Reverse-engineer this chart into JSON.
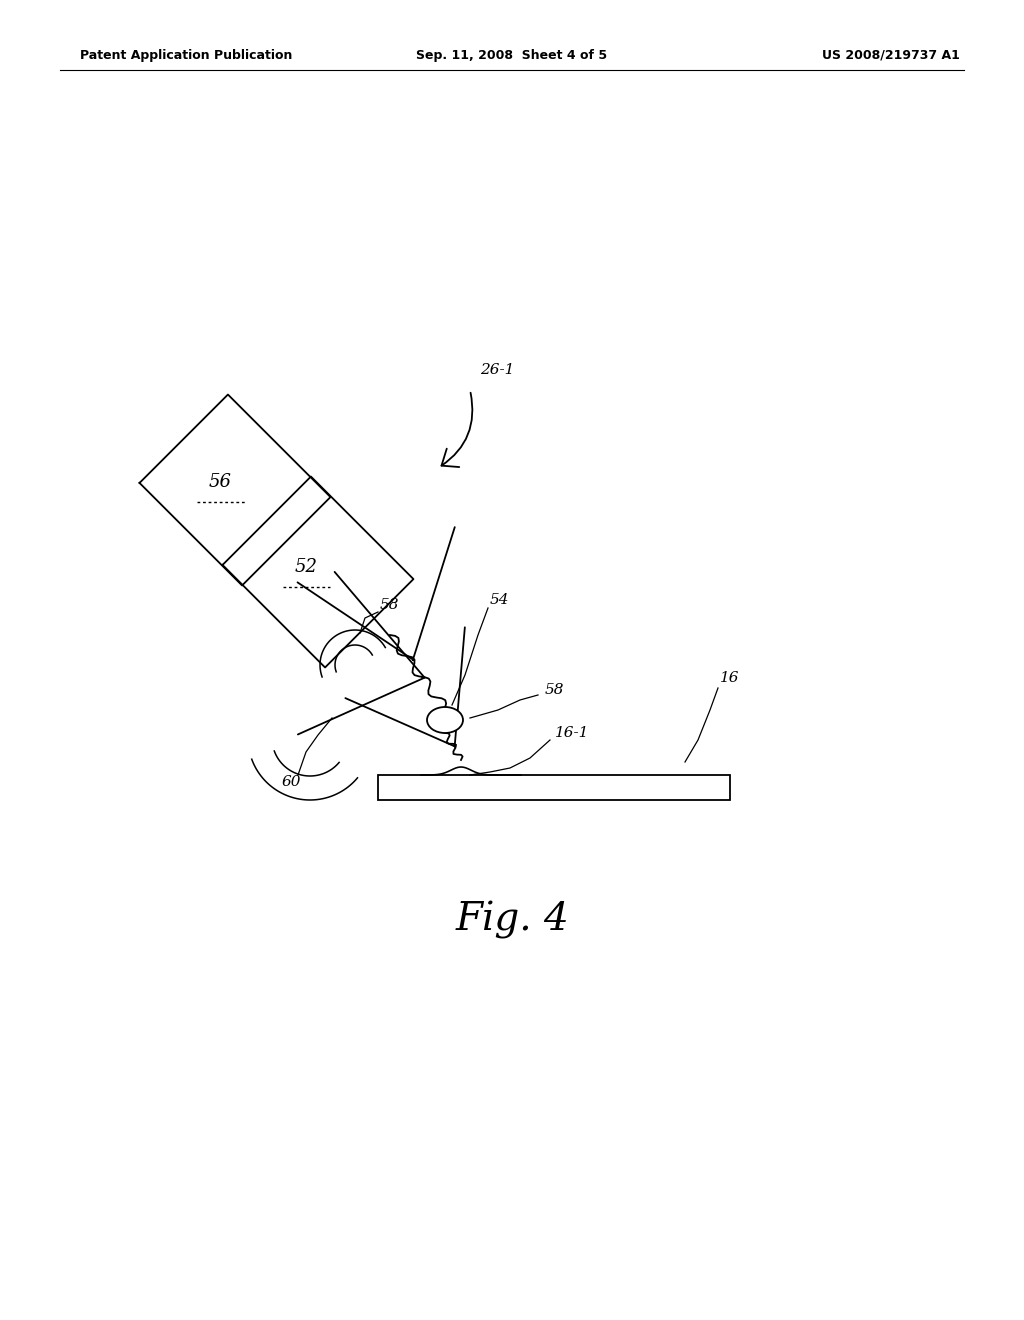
{
  "background_color": "#ffffff",
  "header_left": "Patent Application Publication",
  "header_center": "Sep. 11, 2008  Sheet 4 of 5",
  "header_right": "US 2008/219737 A1",
  "fig_label": "Fig. 4",
  "label_26_1": "26-1",
  "label_52": "52",
  "label_54": "54",
  "label_56": "56",
  "label_58a": "58",
  "label_58b": "58",
  "label_60": "60",
  "label_16": "16",
  "label_16_1": "16-1"
}
